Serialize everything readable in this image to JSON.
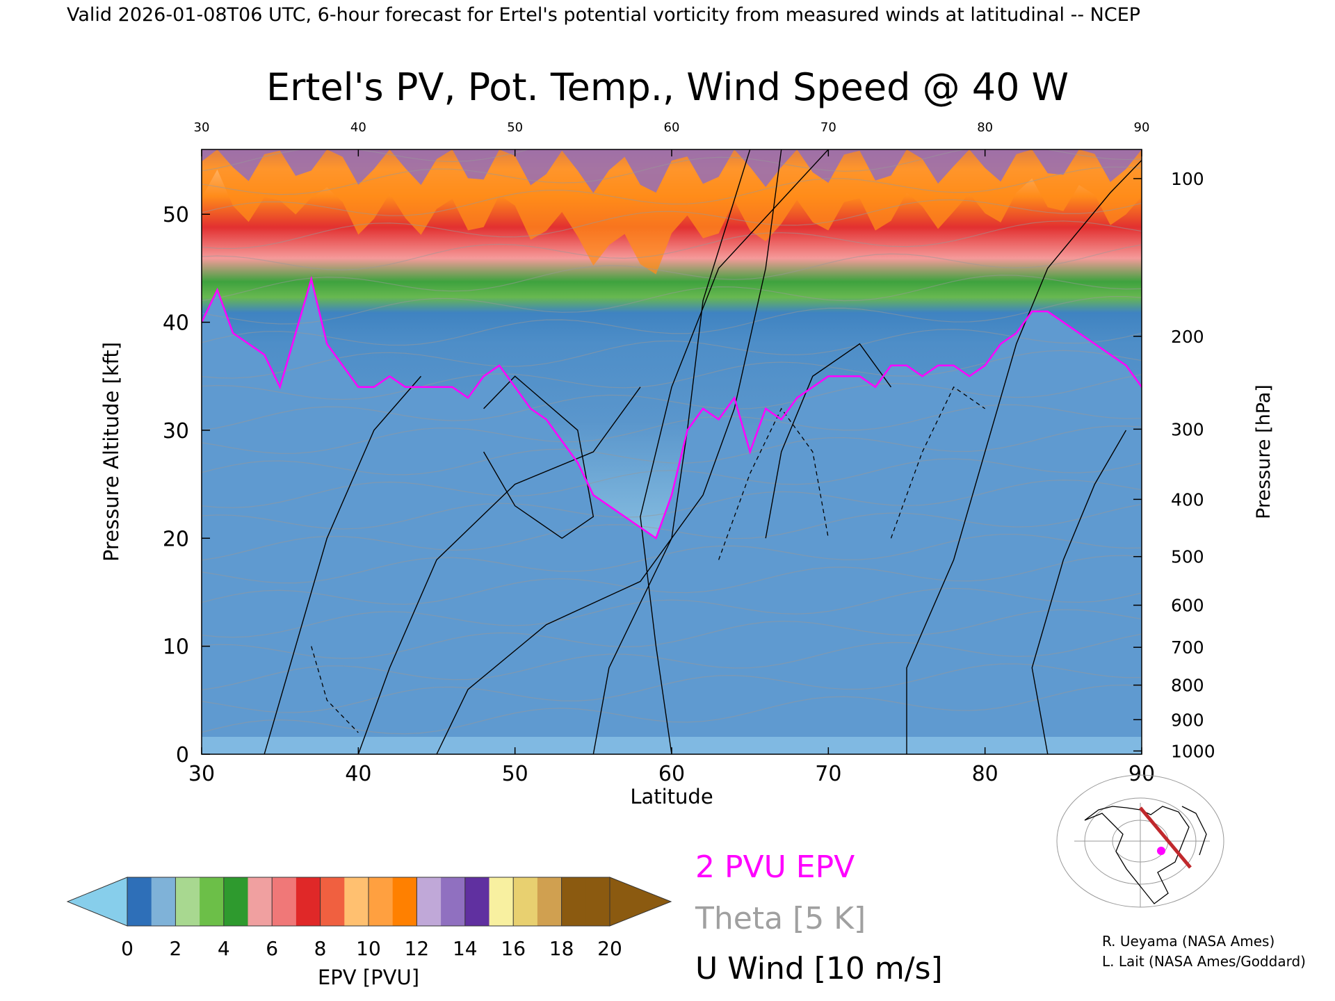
{
  "header": "Valid 2026-01-08T06 UTC, 6-hour forecast for Ertel's potential vorticity from measured winds at latitudinal -- NCEP",
  "credits": [
    "R. Ueyama (NASA Ames)",
    "L. Lait (NASA Ames/Goddard)"
  ],
  "legend_labels": {
    "epv": "2 PVU EPV",
    "theta": "Theta [5 K]",
    "wind": "U Wind [10 m/s]"
  },
  "colors": {
    "epv_contour": "#ff00ff",
    "theta_contour": "#999999",
    "wind_contour": "#000000",
    "colorbar": [
      "#87ceeb",
      "#2e6fb8",
      "#7fb2d8",
      "#a8d890",
      "#6cbf48",
      "#2e9a2e",
      "#f0a0a0",
      "#f07878",
      "#e02828",
      "#f06040",
      "#ffc070",
      "#ffa040",
      "#ff8000",
      "#c0a8d8",
      "#9070c0",
      "#6030a0",
      "#f8f0a0",
      "#e8d070",
      "#d0a050",
      "#8b5a10"
    ]
  },
  "chart_data": {
    "type": "heatmap",
    "title": "Ertel's PV, Pot. Temp., Wind Speed @ 40 W",
    "xlabel": "Latitude",
    "ylabel": "Pressure Altitude [kft]",
    "ylabel_right": "Pressure [hPa]",
    "xlim": [
      30,
      90
    ],
    "ylim": [
      0,
      56
    ],
    "x_ticks": [
      30,
      40,
      50,
      60,
      70,
      80,
      90
    ],
    "y_ticks": [
      0,
      10,
      20,
      30,
      40,
      50
    ],
    "pressure_ticks": [
      {
        "label": "100",
        "kft": 53.3
      },
      {
        "label": "200",
        "kft": 38.7
      },
      {
        "label": "300",
        "kft": 30.1
      },
      {
        "label": "400",
        "kft": 23.6
      },
      {
        "label": "500",
        "kft": 18.3
      },
      {
        "label": "600",
        "kft": 13.8
      },
      {
        "label": "700",
        "kft": 9.9
      },
      {
        "label": "800",
        "kft": 6.4
      },
      {
        "label": "900",
        "kft": 3.2
      },
      {
        "label": "1000",
        "kft": 0.3
      }
    ],
    "tropopause_2pvu": {
      "lat": [
        30,
        31,
        32,
        33,
        34,
        35,
        36,
        37,
        38,
        39,
        40,
        41,
        42,
        43,
        44,
        45,
        46,
        47,
        48,
        49,
        50,
        51,
        52,
        53,
        54,
        55,
        56,
        57,
        58,
        59,
        60,
        61,
        62,
        63,
        64,
        65,
        66,
        67,
        68,
        69,
        70,
        71,
        72,
        73,
        74,
        75,
        76,
        77,
        78,
        79,
        80,
        81,
        82,
        83,
        84,
        85,
        86,
        87,
        88,
        89,
        90
      ],
      "kft": [
        40,
        43,
        39,
        38,
        37,
        34,
        39,
        44,
        38,
        36,
        34,
        34,
        35,
        34,
        34,
        34,
        34,
        33,
        35,
        36,
        34,
        32,
        31,
        29,
        27,
        24,
        23,
        22,
        21,
        20,
        24,
        30,
        32,
        31,
        33,
        28,
        32,
        31,
        33,
        34,
        35,
        35,
        35,
        34,
        36,
        36,
        35,
        36,
        36,
        35,
        36,
        38,
        39,
        41,
        41,
        40,
        39,
        38,
        37,
        36,
        34
      ]
    },
    "colorbar": {
      "label": "EPV [PVU]",
      "ticks": [
        0,
        2,
        4,
        6,
        8,
        10,
        12,
        14,
        16,
        18,
        20
      ]
    }
  }
}
